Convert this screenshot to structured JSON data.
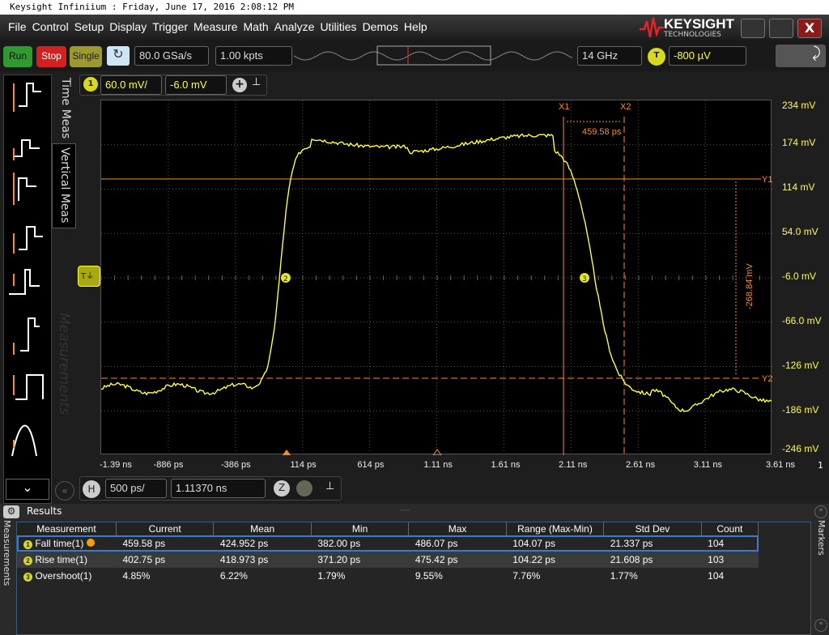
{
  "window": {
    "title": "Keysight Infiniium : Friday, June 17, 2016 2:08:12 PM",
    "close": "X"
  },
  "menu": [
    "File",
    "Control",
    "Setup",
    "Display",
    "Trigger",
    "Measure",
    "Math",
    "Analyze",
    "Utilities",
    "Demos",
    "Help"
  ],
  "logo": {
    "name": "KEYSIGHT",
    "sub": "TECHNOLOGIES"
  },
  "toolbar": {
    "run": "Run",
    "stop": "Stop",
    "single": "Single",
    "sample_rate": "80.0 GSa/s",
    "points": "1.00 kpts",
    "bandwidth": "14 GHz",
    "trigger_badge": "T",
    "trigger_level": "-800 µV"
  },
  "channel": {
    "number": "1",
    "scale": "60.0 mV/",
    "offset": "-6.0 mV"
  },
  "side_tabs": {
    "time": "Time Meas",
    "vertical": "Vertical Meas",
    "measurements": "Measurements"
  },
  "plot": {
    "y_labels": [
      "234 mV",
      "174 mV",
      "114 mV",
      "54.0 mV",
      "-6.0 mV",
      "-66.0 mV",
      "-126 mV",
      "-186 mV",
      "-246 mV"
    ],
    "x_labels": [
      "-1.39 ns",
      "-886 ps",
      "-386 ps",
      "114 ps",
      "614 ps",
      "1.11 ns",
      "1.61 ns",
      "2.11 ns",
      "2.61 ns",
      "3.11 ns",
      "3.61 ns"
    ],
    "channel_marker": "1",
    "cursors": {
      "x1": "X1",
      "x2": "X2",
      "y1": "Y1",
      "y2": "Y2",
      "dx": "459.58 ps",
      "dy": "-268.84 mV"
    },
    "markers": [
      "2",
      "3"
    ],
    "trace_color": "#ffff33",
    "cursor_color": "#ff8c1a"
  },
  "horizontal": {
    "badge": "H",
    "scale": "500 ps/",
    "position": "1.11370 ns"
  },
  "results": {
    "title": "Results",
    "side_left": "Measurements",
    "side_right": "Markers",
    "columns": [
      "Measurement",
      "Current",
      "Mean",
      "Min",
      "Max",
      "Range (Max-Min)",
      "Std Dev",
      "Count"
    ],
    "rows": [
      {
        "n": "1",
        "cells": [
          "Fall time(1)",
          "459.58 ps",
          "424.952 ps",
          "382.00 ps",
          "486.07 ps",
          "104.07 ps",
          "21.337 ps",
          "104"
        ]
      },
      {
        "n": "2",
        "cells": [
          "Rise time(1)",
          "402.75 ps",
          "418.973 ps",
          "371.20 ps",
          "475.42 ps",
          "104.22 ps",
          "21.608 ps",
          "103"
        ]
      },
      {
        "n": "3",
        "cells": [
          "Overshoot(1)",
          "4.85%",
          "6.22%",
          "1.79%",
          "9.55%",
          "7.76%",
          "1.77%",
          "104"
        ]
      }
    ]
  }
}
